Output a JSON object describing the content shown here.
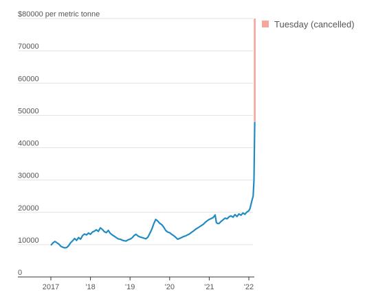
{
  "chart_data": {
    "type": "line",
    "y_unit_label": "$80000 per metric tonne",
    "ylim": [
      0,
      80000
    ],
    "y_ticks": [
      {
        "value": 80000,
        "label": "$80000 per metric tonne"
      },
      {
        "value": 70000,
        "label": "70000"
      },
      {
        "value": 60000,
        "label": "60000"
      },
      {
        "value": 50000,
        "label": "50000"
      },
      {
        "value": 40000,
        "label": "40000"
      },
      {
        "value": 30000,
        "label": "30000"
      },
      {
        "value": 20000,
        "label": "20000"
      },
      {
        "value": 10000,
        "label": "10000"
      },
      {
        "value": 0,
        "label": "0"
      }
    ],
    "xlim": [
      2016.95,
      2022.25
    ],
    "x_ticks": [
      {
        "value": 2017,
        "label": "2017"
      },
      {
        "value": 2018,
        "label": "'18"
      },
      {
        "value": 2019,
        "label": "'19"
      },
      {
        "value": 2020,
        "label": "'20"
      },
      {
        "value": 2021,
        "label": "'21"
      },
      {
        "value": 2022,
        "label": "'22"
      }
    ],
    "grid": true,
    "legend_position": "top-right",
    "series": [
      {
        "color": "#1f8bc2",
        "points": [
          [
            2017.0,
            9800
          ],
          [
            2017.05,
            10500
          ],
          [
            2017.1,
            11000
          ],
          [
            2017.15,
            10600
          ],
          [
            2017.2,
            10200
          ],
          [
            2017.25,
            9500
          ],
          [
            2017.3,
            9200
          ],
          [
            2017.35,
            9000
          ],
          [
            2017.4,
            9100
          ],
          [
            2017.45,
            9700
          ],
          [
            2017.5,
            10600
          ],
          [
            2017.55,
            11200
          ],
          [
            2017.6,
            11900
          ],
          [
            2017.65,
            11300
          ],
          [
            2017.7,
            12200
          ],
          [
            2017.75,
            11700
          ],
          [
            2017.8,
            12800
          ],
          [
            2017.85,
            13300
          ],
          [
            2017.9,
            13000
          ],
          [
            2017.95,
            13600
          ],
          [
            2018.0,
            13200
          ],
          [
            2018.05,
            13900
          ],
          [
            2018.1,
            14200
          ],
          [
            2018.15,
            14600
          ],
          [
            2018.2,
            14100
          ],
          [
            2018.25,
            15200
          ],
          [
            2018.3,
            14700
          ],
          [
            2018.35,
            14000
          ],
          [
            2018.4,
            13700
          ],
          [
            2018.45,
            14400
          ],
          [
            2018.5,
            13500
          ],
          [
            2018.55,
            13000
          ],
          [
            2018.6,
            12600
          ],
          [
            2018.65,
            12200
          ],
          [
            2018.7,
            11800
          ],
          [
            2018.75,
            11700
          ],
          [
            2018.8,
            11400
          ],
          [
            2018.85,
            11200
          ],
          [
            2018.9,
            11100
          ],
          [
            2018.95,
            11500
          ],
          [
            2019.0,
            11700
          ],
          [
            2019.05,
            12100
          ],
          [
            2019.1,
            12800
          ],
          [
            2019.15,
            13200
          ],
          [
            2019.2,
            12700
          ],
          [
            2019.25,
            12400
          ],
          [
            2019.3,
            12200
          ],
          [
            2019.35,
            12000
          ],
          [
            2019.4,
            11800
          ],
          [
            2019.45,
            12300
          ],
          [
            2019.5,
            13500
          ],
          [
            2019.55,
            14800
          ],
          [
            2019.6,
            16500
          ],
          [
            2019.65,
            17800
          ],
          [
            2019.7,
            17300
          ],
          [
            2019.75,
            16600
          ],
          [
            2019.8,
            16200
          ],
          [
            2019.85,
            15400
          ],
          [
            2019.9,
            14400
          ],
          [
            2019.95,
            13900
          ],
          [
            2020.0,
            13700
          ],
          [
            2020.05,
            13200
          ],
          [
            2020.1,
            12800
          ],
          [
            2020.15,
            12300
          ],
          [
            2020.2,
            11700
          ],
          [
            2020.25,
            11900
          ],
          [
            2020.3,
            12200
          ],
          [
            2020.35,
            12500
          ],
          [
            2020.4,
            12700
          ],
          [
            2020.45,
            13000
          ],
          [
            2020.5,
            13300
          ],
          [
            2020.55,
            13800
          ],
          [
            2020.6,
            14200
          ],
          [
            2020.65,
            14700
          ],
          [
            2020.7,
            15100
          ],
          [
            2020.75,
            15500
          ],
          [
            2020.8,
            15900
          ],
          [
            2020.85,
            16300
          ],
          [
            2020.9,
            16900
          ],
          [
            2020.95,
            17400
          ],
          [
            2021.0,
            17800
          ],
          [
            2021.05,
            18100
          ],
          [
            2021.1,
            18400
          ],
          [
            2021.15,
            19200
          ],
          [
            2021.18,
            16800
          ],
          [
            2021.22,
            16500
          ],
          [
            2021.25,
            16600
          ],
          [
            2021.3,
            17200
          ],
          [
            2021.35,
            17700
          ],
          [
            2021.4,
            18200
          ],
          [
            2021.45,
            18000
          ],
          [
            2021.5,
            18600
          ],
          [
            2021.55,
            18900
          ],
          [
            2021.6,
            18500
          ],
          [
            2021.65,
            19300
          ],
          [
            2021.7,
            18700
          ],
          [
            2021.75,
            19500
          ],
          [
            2021.8,
            19100
          ],
          [
            2021.85,
            19800
          ],
          [
            2021.9,
            19400
          ],
          [
            2021.95,
            20100
          ],
          [
            2022.0,
            20500
          ],
          [
            2022.03,
            21200
          ],
          [
            2022.06,
            22800
          ],
          [
            2022.09,
            24200
          ],
          [
            2022.11,
            25000
          ],
          [
            2022.13,
            30000
          ],
          [
            2022.14,
            40000
          ],
          [
            2022.15,
            48000
          ]
        ]
      },
      {
        "name": "Tuesday (cancelled)",
        "color": "#f4a79b",
        "points": [
          [
            2022.15,
            48000
          ],
          [
            2022.15,
            80000
          ]
        ]
      }
    ]
  }
}
